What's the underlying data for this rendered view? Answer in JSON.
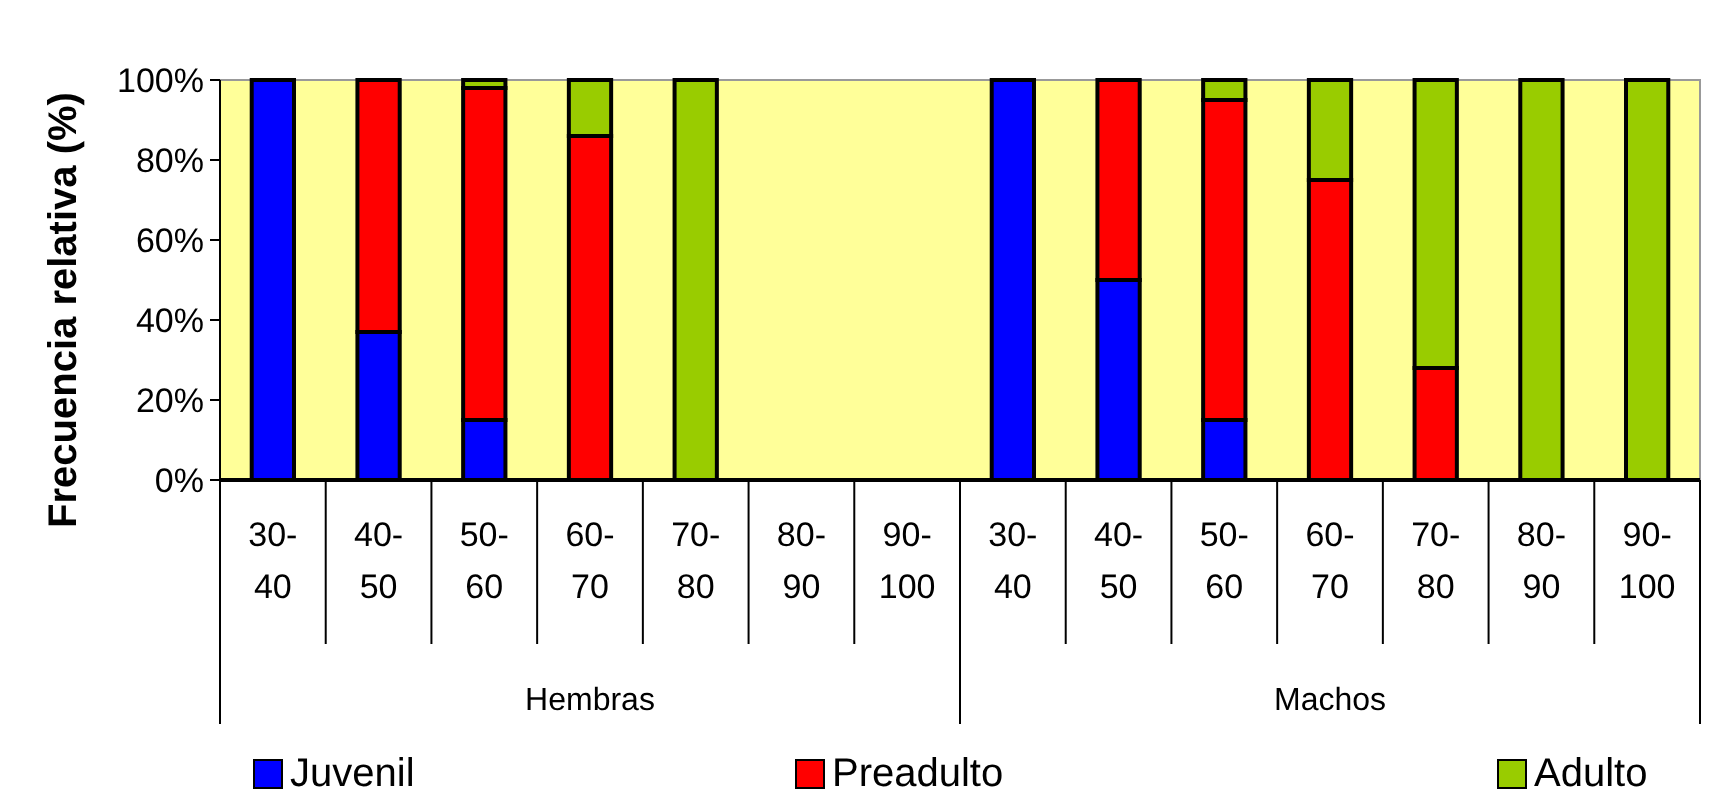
{
  "chart_data": {
    "type": "bar",
    "stacked": true,
    "ylabel": "Frecuencia relativa (%)",
    "categories": [
      "30-40",
      "40-50",
      "50-60",
      "60-70",
      "70-80",
      "80-90",
      "90-100",
      "30-40",
      "40-50",
      "50-60",
      "60-70",
      "70-80",
      "80-90",
      "90-100"
    ],
    "annotations": [
      "Hembras",
      "Machos"
    ],
    "series": [
      {
        "name": "Juvenil",
        "color": "#0000ff",
        "values": [
          100,
          37,
          15,
          null,
          0,
          0,
          0,
          100,
          50,
          15,
          0,
          0,
          0,
          0
        ]
      },
      {
        "name": "Preadulto",
        "color": "#ff0000",
        "values": [
          0,
          63,
          83,
          86,
          0,
          0,
          0,
          0,
          50,
          80,
          75,
          28,
          0,
          0
        ]
      },
      {
        "name": "Adulto",
        "color": "#99cc00",
        "values": [
          0,
          0,
          2,
          14,
          100,
          0,
          0,
          0,
          0,
          5,
          25,
          72,
          100,
          100
        ]
      }
    ],
    "ylim": [
      0,
      100
    ],
    "yticks": [
      {
        "value": 0,
        "label": "0%"
      },
      {
        "value": 20,
        "label": "20%"
      },
      {
        "value": 40,
        "label": "40%"
      },
      {
        "value": 60,
        "label": "60%"
      },
      {
        "value": 80,
        "label": "80%"
      },
      {
        "value": 100,
        "label": "100%"
      }
    ],
    "grid": false,
    "legend": "bottom"
  }
}
